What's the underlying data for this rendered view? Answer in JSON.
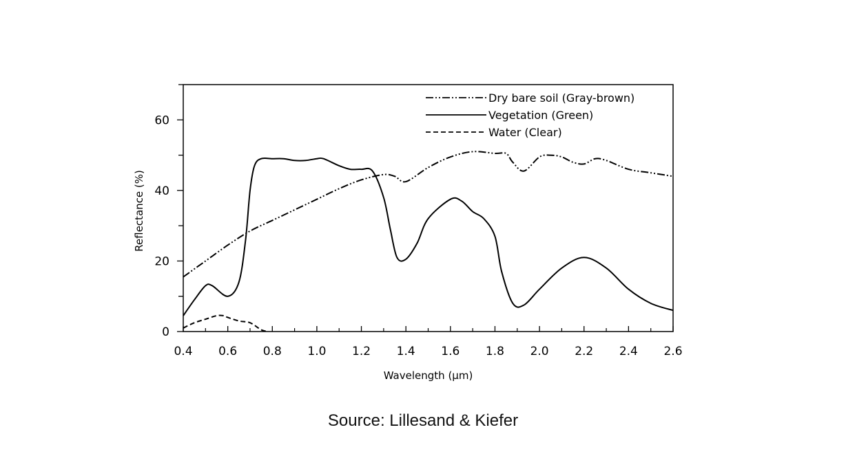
{
  "chart_data": {
    "type": "line",
    "title": "",
    "xlabel": "Wavelength (μm)",
    "ylabel": "Reflectance (%)",
    "xlim": [
      0.4,
      2.6
    ],
    "ylim": [
      0,
      70
    ],
    "xticks": [
      "0.4",
      "0.6",
      "0.8",
      "1.0",
      "1.2",
      "1.4",
      "1.6",
      "1.8",
      "2.0",
      "2.2",
      "2.4",
      "2.6"
    ],
    "yticks": [
      "0",
      "20",
      "40",
      "60"
    ],
    "grid": false,
    "legend_position": "top-right",
    "series": [
      {
        "name": "Dry bare soil (Gray-brown)",
        "style": "dash-dot-dot",
        "x": [
          0.4,
          0.5,
          0.6,
          0.7,
          0.8,
          0.9,
          1.0,
          1.1,
          1.2,
          1.3,
          1.35,
          1.4,
          1.5,
          1.6,
          1.7,
          1.8,
          1.85,
          1.88,
          1.93,
          2.0,
          2.05,
          2.1,
          2.15,
          2.2,
          2.25,
          2.3,
          2.4,
          2.5,
          2.6
        ],
        "y": [
          15.5,
          20,
          24.5,
          28.5,
          31.5,
          34.5,
          37.5,
          40.5,
          43,
          44.5,
          44,
          42.5,
          46.5,
          49.5,
          51,
          50.5,
          50.5,
          48,
          45.5,
          49.5,
          50,
          49.5,
          48,
          47.5,
          49,
          48.5,
          46,
          45,
          44
        ]
      },
      {
        "name": "Vegetation (Green)",
        "style": "solid",
        "x": [
          0.4,
          0.45,
          0.5,
          0.53,
          0.6,
          0.65,
          0.68,
          0.7,
          0.72,
          0.75,
          0.8,
          0.85,
          0.9,
          0.95,
          1.0,
          1.03,
          1.1,
          1.15,
          1.2,
          1.25,
          1.3,
          1.33,
          1.36,
          1.4,
          1.45,
          1.5,
          1.6,
          1.65,
          1.7,
          1.75,
          1.8,
          1.83,
          1.88,
          1.93,
          2.0,
          2.1,
          2.2,
          2.3,
          2.4,
          2.5,
          2.6
        ],
        "y": [
          4.5,
          9,
          13,
          13,
          10,
          14,
          26,
          40,
          47,
          49,
          49,
          49,
          48.5,
          48.5,
          49,
          49,
          47,
          46,
          46,
          45.5,
          38,
          29,
          21,
          20.5,
          25,
          32,
          37.5,
          37,
          34,
          32,
          27,
          17,
          8,
          7.5,
          12,
          18,
          21,
          18,
          12,
          8,
          6
        ]
      },
      {
        "name": "Water (Clear)",
        "style": "dashed",
        "x": [
          0.4,
          0.45,
          0.5,
          0.55,
          0.58,
          0.6,
          0.65,
          0.7,
          0.75,
          0.78
        ],
        "y": [
          1,
          2.5,
          3.5,
          4.5,
          4.5,
          4,
          3,
          2.5,
          0.5,
          0
        ]
      }
    ]
  },
  "source": "Source: Lillesand & Kiefer"
}
